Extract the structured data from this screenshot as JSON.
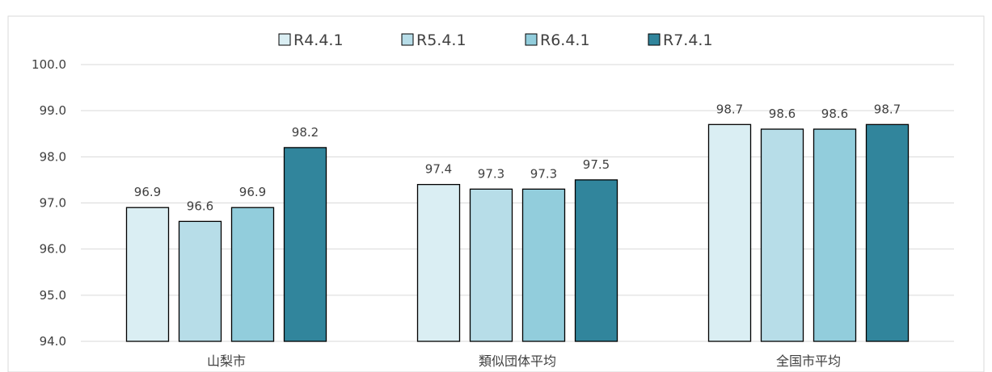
{
  "chart_data": {
    "type": "bar",
    "categories": [
      "山梨市",
      "類似団体平均",
      "全国市平均"
    ],
    "series": [
      {
        "name": "R4.4.1",
        "values": [
          96.9,
          97.4,
          98.7
        ],
        "color": "#daeef3"
      },
      {
        "name": "R5.4.1",
        "values": [
          96.6,
          97.3,
          98.6
        ],
        "color": "#b7dde8"
      },
      {
        "name": "R6.4.1",
        "values": [
          96.9,
          97.3,
          98.6
        ],
        "color": "#92cddc"
      },
      {
        "name": "R7.4.1",
        "values": [
          98.2,
          97.5,
          98.7
        ],
        "color": "#31859c"
      }
    ],
    "ylim": [
      94.0,
      100.0
    ],
    "yticks": [
      "94.0",
      "95.0",
      "96.0",
      "97.0",
      "98.0",
      "99.0",
      "100.0"
    ],
    "grid": true,
    "legend_position": "top"
  }
}
